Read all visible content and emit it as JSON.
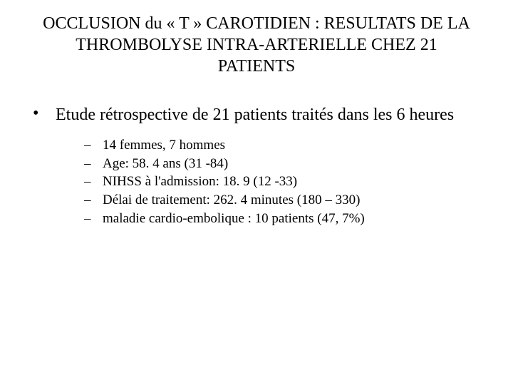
{
  "title": "OCCLUSION du « T » CAROTIDIEN : RESULTATS DE LA THROMBOLYSE INTRA-ARTERIELLE CHEZ 21 PATIENTS",
  "mainBullet": {
    "marker": "•",
    "text": "Etude rétrospective de 21 patients traités dans les 6 heures"
  },
  "subMarker": "–",
  "subItems": [
    "14 femmes, 7 hommes",
    "Age:  58. 4 ans (31 -84)",
    "NIHSS à l'admission: 18. 9 (12 -33)",
    "Délai de traitement: 262. 4 minutes (180 – 330)",
    "maladie cardio-embolique : 10 patients (47, 7%)"
  ]
}
